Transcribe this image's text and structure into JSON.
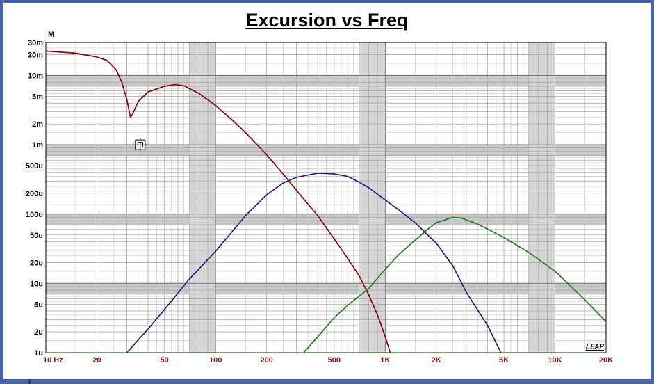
{
  "chart_data": {
    "type": "line",
    "title": "Excursion vs Freq",
    "ylabel": "M",
    "xscale": "log",
    "yscale": "log",
    "xlim": [
      10,
      20000
    ],
    "ylim": [
      1e-06,
      0.03
    ],
    "grid": true,
    "x_ticks": [
      {
        "v": 10,
        "label": "10  Hz"
      },
      {
        "v": 20,
        "label": "20"
      },
      {
        "v": 50,
        "label": "50"
      },
      {
        "v": 100,
        "label": "100"
      },
      {
        "v": 200,
        "label": "200"
      },
      {
        "v": 500,
        "label": "500"
      },
      {
        "v": 1000,
        "label": "1K"
      },
      {
        "v": 2000,
        "label": "2K"
      },
      {
        "v": 5000,
        "label": "5K"
      },
      {
        "v": 10000,
        "label": "10K"
      },
      {
        "v": 20000,
        "label": "20K"
      }
    ],
    "y_ticks": [
      {
        "v": 0.03,
        "label": "30m"
      },
      {
        "v": 0.02,
        "label": "20m"
      },
      {
        "v": 0.01,
        "label": "10m"
      },
      {
        "v": 0.005,
        "label": "5m"
      },
      {
        "v": 0.002,
        "label": "2m"
      },
      {
        "v": 0.001,
        "label": "1m"
      },
      {
        "v": 0.0005,
        "label": "500u"
      },
      {
        "v": 0.0002,
        "label": "200u"
      },
      {
        "v": 0.0001,
        "label": "100u"
      },
      {
        "v": 5e-05,
        "label": "50u"
      },
      {
        "v": 2e-05,
        "label": "20u"
      },
      {
        "v": 1e-05,
        "label": "10u"
      },
      {
        "v": 5e-06,
        "label": "5u"
      },
      {
        "v": 2e-06,
        "label": "2u"
      },
      {
        "v": 1e-06,
        "label": "1u"
      }
    ],
    "series": [
      {
        "color": "#8b0000",
        "points": [
          [
            10,
            0.0225
          ],
          [
            15,
            0.021
          ],
          [
            20,
            0.0185
          ],
          [
            23,
            0.0165
          ],
          [
            26,
            0.012
          ],
          [
            28,
            0.008
          ],
          [
            30,
            0.0045
          ],
          [
            31.5,
            0.0025
          ],
          [
            32.5,
            0.0028
          ],
          [
            35,
            0.0042
          ],
          [
            40,
            0.0058
          ],
          [
            50,
            0.007
          ],
          [
            58,
            0.0074
          ],
          [
            65,
            0.0071
          ],
          [
            80,
            0.0055
          ],
          [
            100,
            0.0037
          ],
          [
            130,
            0.0021
          ],
          [
            150,
            0.0015
          ],
          [
            200,
            0.00072
          ],
          [
            250,
            0.00038
          ],
          [
            300,
            0.00022
          ],
          [
            400,
            9.5e-05
          ],
          [
            500,
            4.4e-05
          ],
          [
            600,
            2.3e-05
          ],
          [
            700,
            1.3e-05
          ],
          [
            800,
            6.8e-06
          ],
          [
            900,
            3.5e-06
          ],
          [
            1000,
            1.7e-06
          ],
          [
            1070,
            1e-06
          ]
        ]
      },
      {
        "color": "#1a237e",
        "points": [
          [
            30,
            1e-06
          ],
          [
            40,
            2.2e-06
          ],
          [
            50,
            4.2e-06
          ],
          [
            70,
            1.15e-05
          ],
          [
            100,
            2.9e-05
          ],
          [
            150,
            9.5e-05
          ],
          [
            200,
            0.00019
          ],
          [
            250,
            0.00028
          ],
          [
            300,
            0.00034
          ],
          [
            400,
            0.00039
          ],
          [
            450,
            0.000385
          ],
          [
            500,
            0.00038
          ],
          [
            600,
            0.00035
          ],
          [
            700,
            0.00029
          ],
          [
            800,
            0.00024
          ],
          [
            1000,
            0.00016
          ],
          [
            1200,
            0.000115
          ],
          [
            1500,
            7.5e-05
          ],
          [
            2000,
            3.8e-05
          ],
          [
            2500,
            1.8e-05
          ],
          [
            3000,
            7.5e-06
          ],
          [
            4000,
            2.5e-06
          ],
          [
            4800,
            1e-06
          ]
        ]
      },
      {
        "color": "#1e7d1e",
        "points": [
          [
            330,
            1e-06
          ],
          [
            400,
            1.7e-06
          ],
          [
            500,
            3.2e-06
          ],
          [
            600,
            4.8e-06
          ],
          [
            800,
            8.5e-06
          ],
          [
            1000,
            1.6e-05
          ],
          [
            1200,
            2.6e-05
          ],
          [
            1500,
            4.2e-05
          ],
          [
            1800,
            6.2e-05
          ],
          [
            2000,
            7.5e-05
          ],
          [
            2500,
            9e-05
          ],
          [
            2800,
            8.8e-05
          ],
          [
            3500,
            7.2e-05
          ],
          [
            5000,
            4.6e-05
          ],
          [
            7000,
            2.8e-05
          ],
          [
            10000,
            1.5e-05
          ],
          [
            15000,
            5.8e-06
          ],
          [
            20000,
            2.8e-06
          ]
        ]
      }
    ],
    "marker": {
      "x": 36,
      "y": 0.001
    },
    "watermark": "LEAP"
  }
}
